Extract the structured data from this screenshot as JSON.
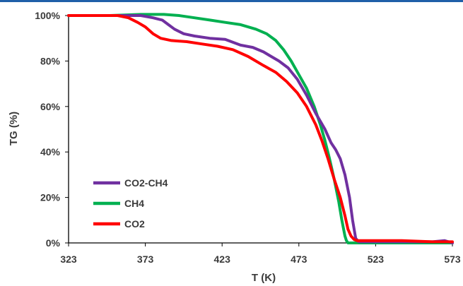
{
  "chart_data": {
    "type": "line",
    "title": "",
    "xlabel": "T (K)",
    "ylabel": "TG (%)",
    "xlim": [
      323,
      573
    ],
    "ylim": [
      0,
      100
    ],
    "x_ticks": [
      "323",
      "373",
      "423",
      "473",
      "523",
      "573"
    ],
    "y_ticks": [
      "0%",
      "20%",
      "40%",
      "60%",
      "80%",
      "100%"
    ],
    "grid": false,
    "legend_position": "bottom-left",
    "header_rule_color": "#1f5fa8",
    "series": [
      {
        "name": "CO2-CH4",
        "color": "#7030a0",
        "x": [
          323,
          340,
          360,
          370,
          378,
          384,
          388,
          392,
          398,
          405,
          415,
          425,
          435,
          443,
          450,
          455,
          460,
          466,
          472,
          478,
          484,
          490,
          494,
          497,
          500,
          503,
          506,
          508,
          510,
          512,
          520,
          540,
          560,
          568,
          573
        ],
        "y": [
          100,
          100,
          100,
          100,
          99,
          98,
          96,
          94,
          92,
          91,
          90,
          89.5,
          87,
          86,
          84,
          82,
          80,
          77,
          72,
          65,
          57,
          50,
          44,
          41,
          37,
          30,
          20,
          10,
          2,
          0.5,
          0.5,
          0.5,
          0.5,
          1,
          0
        ]
      },
      {
        "name": "CH4",
        "color": "#00b050",
        "x": [
          323,
          350,
          370,
          385,
          395,
          405,
          415,
          425,
          435,
          445,
          452,
          458,
          463,
          468,
          473,
          478,
          483,
          487,
          490,
          493,
          496,
          499,
          501,
          503,
          504,
          505,
          520,
          540,
          560,
          573
        ],
        "y": [
          100,
          100,
          100.5,
          100.5,
          100,
          99,
          98,
          97,
          96,
          94,
          92,
          89,
          85,
          80,
          74,
          68,
          60,
          52,
          45,
          37,
          28,
          18,
          10,
          3,
          1,
          0,
          0,
          0,
          0,
          0
        ]
      },
      {
        "name": "CO2",
        "color": "#ff0000",
        "x": [
          323,
          340,
          355,
          362,
          368,
          373,
          378,
          383,
          390,
          400,
          410,
          420,
          430,
          440,
          450,
          458,
          465,
          472,
          478,
          484,
          488,
          492,
          496,
          500,
          503,
          505,
          507,
          509,
          511,
          520,
          540,
          560,
          573
        ],
        "y": [
          100,
          100,
          100,
          99,
          97,
          95,
          92,
          90,
          89,
          88.5,
          87.5,
          86.5,
          85,
          82,
          78,
          75,
          71,
          66,
          60,
          52,
          45,
          37,
          28,
          20,
          12,
          6,
          3,
          1.5,
          1,
          1,
          1,
          0.5,
          0.5
        ]
      }
    ]
  }
}
